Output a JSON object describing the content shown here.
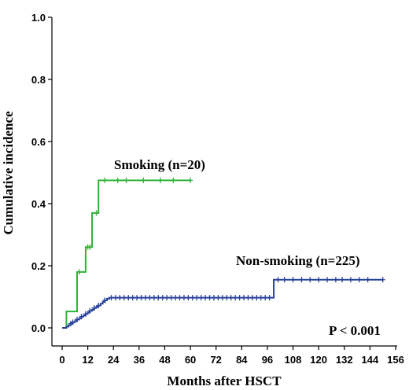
{
  "chart_data": {
    "type": "line",
    "xlabel": "Months after HSCT",
    "ylabel": "Cumulative incidence",
    "xlim": [
      0,
      156
    ],
    "ylim": [
      0,
      1.0
    ],
    "x_ticks": [
      0,
      12,
      24,
      36,
      48,
      60,
      72,
      84,
      96,
      108,
      120,
      132,
      144,
      156
    ],
    "y_ticks": [
      0.0,
      0.2,
      0.4,
      0.6,
      0.8,
      1.0
    ],
    "y_tick_labels": [
      "0.0",
      "0.2",
      "0.4",
      "0.6",
      "0.8",
      "1.0"
    ],
    "grid": false,
    "series": [
      {
        "name": "Smoking (n=20)",
        "color": "#2db33a",
        "steps": [
          [
            0,
            0
          ],
          [
            2,
            0.053
          ],
          [
            7,
            0.053
          ],
          [
            7,
            0.18
          ],
          [
            11,
            0.18
          ],
          [
            11,
            0.26
          ],
          [
            14,
            0.26
          ],
          [
            14,
            0.37
          ],
          [
            17,
            0.37
          ],
          [
            17,
            0.475
          ],
          [
            60,
            0.475
          ]
        ],
        "censor_x": [
          8,
          12,
          13,
          16,
          20,
          26,
          30,
          38,
          46,
          52,
          60
        ]
      },
      {
        "name": "Non-smoking (n=225)",
        "color": "#27409a",
        "steps": [
          [
            0,
            0
          ],
          [
            2,
            0.004
          ],
          [
            3,
            0.009
          ],
          [
            4,
            0.014
          ],
          [
            5,
            0.018
          ],
          [
            6,
            0.022
          ],
          [
            7,
            0.027
          ],
          [
            8,
            0.031
          ],
          [
            9,
            0.036
          ],
          [
            10,
            0.04
          ],
          [
            11,
            0.045
          ],
          [
            12,
            0.05
          ],
          [
            13,
            0.055
          ],
          [
            14,
            0.059
          ],
          [
            15,
            0.064
          ],
          [
            16,
            0.068
          ],
          [
            17,
            0.072
          ],
          [
            18,
            0.078
          ],
          [
            19,
            0.084
          ],
          [
            20,
            0.089
          ],
          [
            21,
            0.094
          ],
          [
            22,
            0.097
          ],
          [
            99,
            0.097
          ],
          [
            99,
            0.155
          ],
          [
            150,
            0.155
          ]
        ],
        "censor_x": [
          4,
          5,
          7,
          9,
          11,
          13,
          15,
          17,
          20,
          23,
          25,
          27,
          29,
          31,
          33,
          35,
          37,
          39,
          41,
          43,
          45,
          47,
          49,
          51,
          53,
          55,
          57,
          59,
          61,
          63,
          65,
          67,
          69,
          71,
          73,
          75,
          77,
          79,
          81,
          83,
          85,
          87,
          89,
          91,
          93,
          95,
          97,
          101,
          104,
          108,
          112,
          116,
          120,
          124,
          128,
          131,
          135,
          139,
          143,
          150
        ]
      }
    ],
    "annotations": [
      "P < 0.001"
    ]
  }
}
